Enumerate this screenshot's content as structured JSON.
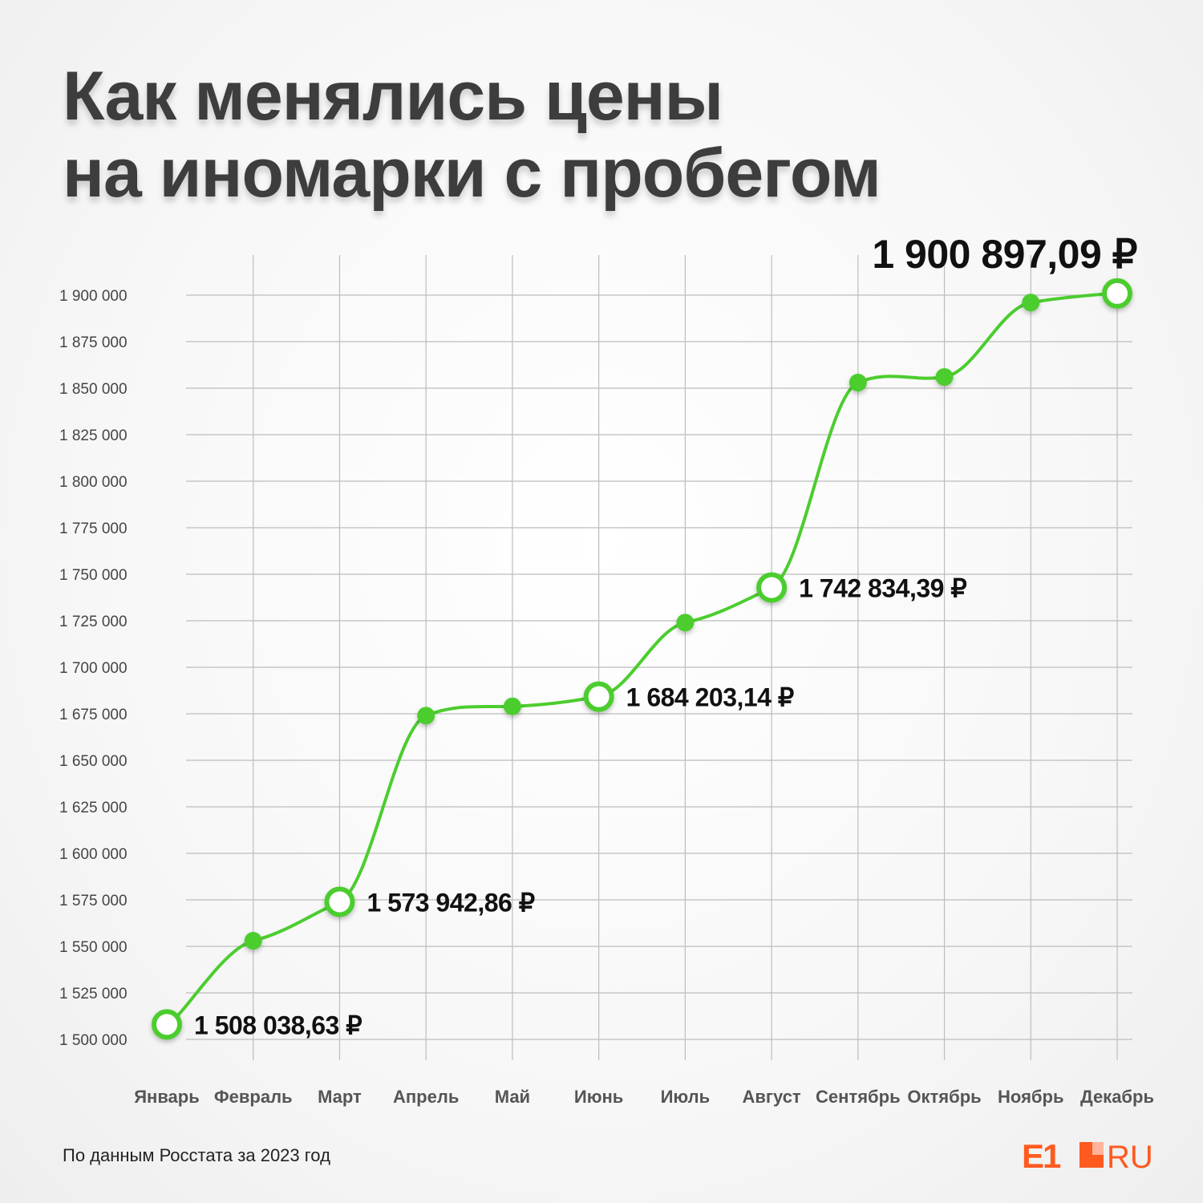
{
  "title_lines": [
    "Как менялись цены",
    "на иномарки с пробегом"
  ],
  "footer": "По данным Росстата за 2023 год",
  "logo": {
    "text_e1": "E1",
    "text_ru": "RU",
    "color": "#ff5a1f"
  },
  "colors": {
    "line": "#4ccd2f",
    "marker_edge": "#4ccd2f",
    "grid": "#bdbdbd"
  },
  "chart_data": {
    "type": "line",
    "categories": [
      "Январь",
      "Февраль",
      "Март",
      "Апрель",
      "Май",
      "Июнь",
      "Июль",
      "Август",
      "Сентябрь",
      "Октябрь",
      "Ноябрь",
      "Декабрь"
    ],
    "values": [
      1508038.63,
      1553000,
      1573942.86,
      1674000,
      1679000,
      1684203.14,
      1724000,
      1742834.39,
      1853000,
      1856000,
      1896000,
      1900897.09
    ],
    "highlighted": [
      0,
      2,
      5,
      7,
      11
    ],
    "data_labels": [
      {
        "index": 0,
        "text": "1 508 038,63 ₽"
      },
      {
        "index": 2,
        "text": "1 573 942,86 ₽"
      },
      {
        "index": 5,
        "text": "1 684 203,14 ₽"
      },
      {
        "index": 7,
        "text": "1 742 834,39 ₽"
      },
      {
        "index": 11,
        "text": "1 900 897,09 ₽"
      }
    ],
    "yticks": [
      1500000,
      1525000,
      1550000,
      1575000,
      1600000,
      1625000,
      1650000,
      1675000,
      1700000,
      1725000,
      1750000,
      1775000,
      1800000,
      1825000,
      1850000,
      1875000,
      1900000
    ],
    "ytick_labels": [
      "1 500 000",
      "1 525 000",
      "1 550 000",
      "1 575 000",
      "1 600 000",
      "1 625 000",
      "1 650 000",
      "1 675 000",
      "1 700 000",
      "1 725 000",
      "1 750 000",
      "1 775 000",
      "1 800 000",
      "1 825 000",
      "1 850 000",
      "1 875 000",
      "1 900 000"
    ],
    "ylim": [
      1500000,
      1900000
    ],
    "grid": true,
    "title": "Как менялись цены на иномарки с пробегом",
    "xlabel": "",
    "ylabel": ""
  }
}
